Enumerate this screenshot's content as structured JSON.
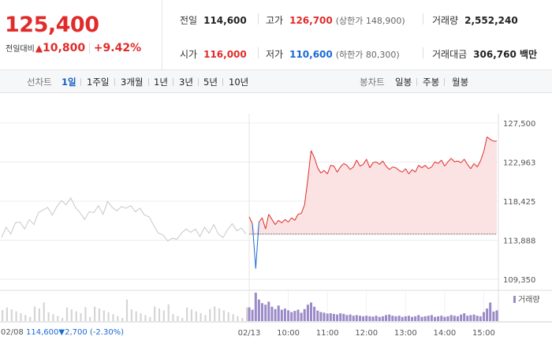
{
  "quote": {
    "price": "125,400",
    "change_label": "전일대비",
    "change_triangle": "▲",
    "change": "10,800",
    "change_rate": "+9.42%"
  },
  "stats": {
    "prev_close_label": "전일",
    "prev_close": "114,600",
    "high_label": "고가",
    "high": "126,700",
    "upper_limit": "(상한가 148,900)",
    "volume_label": "거래량",
    "volume": "2,552,240",
    "open_label": "시가",
    "open": "116,000",
    "low_label": "저가",
    "low": "110,600",
    "lower_limit": "(하한가 80,300)",
    "amount_label": "거래대금",
    "amount": "306,760 백만"
  },
  "periods": {
    "line_label": "선차트",
    "items": [
      "1일",
      "1주일",
      "3개월",
      "1년",
      "3년",
      "5년",
      "10년"
    ],
    "selected": "1일",
    "candle_label": "봉차트",
    "candle_items": [
      "일봉",
      "주봉",
      "월봉"
    ]
  },
  "colors": {
    "up": "#e12b2b",
    "down": "#1a6ad6",
    "prev_day_line": "#c8c8c8",
    "volume": "#9b8ac7"
  },
  "chart_data": {
    "type": "line",
    "y_ticks": [
      "127,500",
      "122,963",
      "118,425",
      "113,888",
      "109,350"
    ],
    "ylim": [
      109350,
      127500
    ],
    "x_ticks": [
      "02/13",
      "10:00",
      "11:00",
      "12:00",
      "13:00",
      "14:00",
      "15:00"
    ],
    "reference_line": 114600,
    "legend": "거래량",
    "previous_day": {
      "date": "02/08",
      "close": "114,600",
      "change_triangle": "▼",
      "change": "2,700",
      "change_rate": "(-2.30%)",
      "values": [
        114200,
        115400,
        114600,
        115900,
        116000,
        115200,
        116300,
        115700,
        117100,
        117400,
        117700,
        116800,
        117800,
        118500,
        118000,
        118800,
        117700,
        117100,
        116300,
        117200,
        117100,
        117900,
        116900,
        118400,
        117700,
        117300,
        117800,
        117600,
        117900,
        117200,
        117600,
        116800,
        116600,
        115600,
        114700,
        114500,
        113800,
        114100,
        114000,
        114700,
        115200,
        114800,
        115200,
        114300,
        115400,
        114700,
        115700,
        114600,
        114200,
        115100,
        115800,
        115000,
        115300,
        114600
      ]
    },
    "today": {
      "times": [
        "09:00",
        "09:05",
        "09:10",
        "09:15",
        "09:20",
        "09:25",
        "09:30",
        "09:35",
        "09:40",
        "09:45",
        "09:50",
        "09:55",
        "10:00",
        "10:05",
        "10:10",
        "10:15",
        "10:20",
        "10:25",
        "10:30",
        "10:35",
        "10:40",
        "10:45",
        "10:50",
        "10:55",
        "11:00",
        "11:05",
        "11:10",
        "11:15",
        "11:20",
        "11:25",
        "11:30",
        "11:35",
        "11:40",
        "11:45",
        "11:50",
        "11:55",
        "12:00",
        "12:05",
        "12:10",
        "12:15",
        "12:20",
        "12:25",
        "12:30",
        "12:35",
        "12:40",
        "12:45",
        "12:50",
        "12:55",
        "13:00",
        "13:05",
        "13:10",
        "13:15",
        "13:20",
        "13:25",
        "13:30",
        "13:35",
        "13:40",
        "13:45",
        "13:50",
        "13:55",
        "14:00",
        "14:05",
        "14:10",
        "14:15",
        "14:20",
        "14:25",
        "14:30",
        "14:35",
        "14:40",
        "14:45",
        "14:50",
        "14:55",
        "15:00",
        "15:05",
        "15:10",
        "15:15",
        "15:20"
      ],
      "values": [
        116600,
        115800,
        110600,
        116000,
        116500,
        115200,
        116900,
        116300,
        115700,
        116200,
        115900,
        116300,
        116000,
        116500,
        116200,
        116900,
        117000,
        118000,
        121000,
        124300,
        123500,
        122300,
        121700,
        122000,
        121600,
        122600,
        122500,
        121800,
        122400,
        122800,
        122600,
        122100,
        122400,
        123200,
        122500,
        122700,
        123300,
        122300,
        122900,
        123000,
        122700,
        123100,
        122500,
        122100,
        122400,
        122300,
        122000,
        121800,
        122200,
        121600,
        122100,
        121800,
        122600,
        122300,
        122600,
        122200,
        122400,
        123000,
        122800,
        123200,
        122500,
        123000,
        123400,
        123000,
        123100,
        122900,
        123300,
        122700,
        122200,
        122800,
        122400,
        123100,
        124200,
        125900,
        125600,
        125400,
        125400
      ],
      "volume": [
        46,
        38,
        95,
        72,
        60,
        55,
        65,
        48,
        40,
        52,
        38,
        42,
        36,
        30,
        34,
        38,
        28,
        40,
        55,
        62,
        48,
        35,
        30,
        28,
        25,
        26,
        24,
        22,
        26,
        24,
        20,
        22,
        18,
        20,
        18,
        16,
        18,
        16,
        15,
        18,
        14,
        16,
        20,
        22,
        18,
        16,
        18,
        14,
        16,
        18,
        14,
        16,
        20,
        14,
        16,
        18,
        20,
        14,
        16,
        18,
        14,
        16,
        20,
        18,
        16,
        22,
        26,
        18,
        20,
        22,
        18,
        16,
        30,
        42,
        62,
        32,
        36
      ]
    }
  }
}
